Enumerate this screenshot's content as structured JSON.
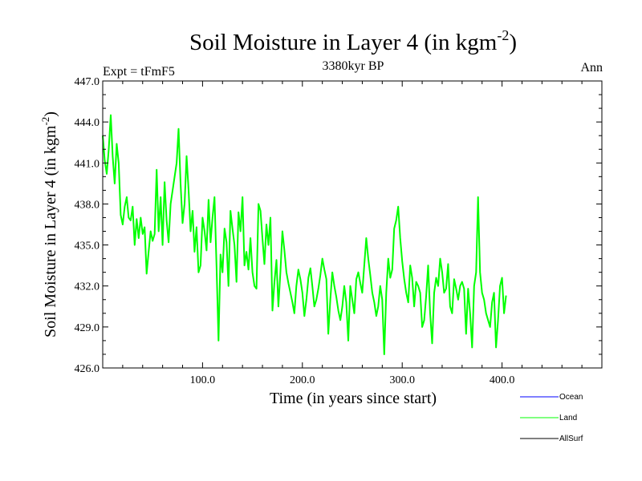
{
  "chart_data": {
    "type": "line",
    "title": "Soil Moisture in Layer 4 (in kgm",
    "title_exponent": "-2",
    "title_close": ")",
    "subtitle_left": "Expt = tFmF5",
    "subtitle_center": "3380kyr BP",
    "subtitle_right": "Ann",
    "xlabel": "Time (in years since start)",
    "ylabel": "Soil Moisture in Layer 4 (in kgm",
    "ylabel_exponent": "-2",
    "ylabel_close": ")",
    "xlim": [
      0,
      500
    ],
    "ylim": [
      426.0,
      447.0
    ],
    "x_ticks": [
      100,
      200,
      300,
      400
    ],
    "x_tick_labels": [
      "100.0",
      "200.0",
      "300.0",
      "400.0"
    ],
    "y_ticks": [
      426,
      429,
      432,
      435,
      438,
      441,
      444,
      447
    ],
    "y_tick_labels": [
      "426.0",
      "429.0",
      "432.0",
      "435.0",
      "438.0",
      "441.0",
      "444.0",
      "447.0"
    ],
    "legend": [
      {
        "name": "Ocean",
        "color": "#0000ff"
      },
      {
        "name": "Land",
        "color": "#00ff00"
      },
      {
        "name": "AllSurf",
        "color": "#000000"
      }
    ],
    "series": [
      {
        "name": "Land",
        "color": "#00ff00",
        "x_start": 0,
        "x_step": 2,
        "values": [
          443.0,
          441.2,
          440.2,
          442.0,
          444.5,
          441.5,
          439.5,
          442.4,
          441.0,
          437.2,
          436.5,
          437.8,
          438.5,
          437.0,
          436.8,
          437.8,
          435.0,
          436.9,
          435.5,
          437.0,
          435.8,
          436.3,
          432.9,
          434.5,
          436.0,
          435.3,
          435.8,
          440.5,
          436.0,
          438.5,
          435.0,
          439.6,
          436.8,
          435.2,
          438.0,
          439.0,
          440.0,
          441.0,
          443.5,
          439.5,
          436.6,
          438.0,
          441.5,
          439.0,
          436.0,
          437.5,
          434.5,
          436.3,
          433.0,
          433.5,
          437.0,
          436.0,
          434.6,
          438.3,
          435.2,
          437.0,
          438.5,
          433.5,
          428.0,
          434.3,
          433.0,
          436.2,
          435.2,
          432.0,
          437.5,
          436.2,
          435.0,
          432.3,
          437.4,
          436.0,
          438.5,
          433.5,
          434.5,
          433.2,
          435.5,
          433.0,
          432.0,
          431.8,
          438.0,
          437.5,
          435.5,
          433.6,
          436.5,
          435.0,
          437.0,
          430.2,
          432.3,
          433.9,
          430.5,
          433.0,
          436.0,
          434.6,
          433.0,
          432.2,
          431.5,
          430.8,
          430.0,
          432.0,
          433.2,
          432.5,
          431.5,
          429.8,
          431.0,
          432.6,
          433.3,
          432.0,
          430.5,
          431.0,
          431.8,
          432.8,
          434.0,
          433.2,
          432.5,
          428.5,
          431.0,
          433.0,
          432.0,
          431.2,
          430.2,
          429.5,
          430.5,
          432.0,
          430.8,
          428.0,
          432.0,
          431.0,
          430.0,
          432.5,
          433.0,
          432.2,
          431.5,
          433.5,
          435.5,
          434.0,
          432.8,
          431.5,
          430.8,
          429.8,
          430.5,
          432.0,
          431.0,
          427.0,
          431.5,
          434.0,
          432.6,
          433.2,
          436.2,
          436.8,
          437.8,
          435.5,
          433.8,
          432.5,
          431.5,
          430.8,
          433.5,
          432.6,
          430.5,
          432.3,
          432.0,
          431.5,
          429.0,
          429.5,
          431.3,
          433.5,
          430.0,
          427.8,
          431.5,
          432.6,
          432.0,
          434.0,
          433.0,
          431.5,
          431.8,
          433.6,
          430.5,
          430.0,
          432.5,
          431.8,
          431.0,
          432.0,
          432.3,
          431.8,
          428.5,
          431.8,
          430.0,
          427.5,
          432.0,
          433.0,
          438.5,
          433.0,
          431.5,
          431.0,
          430.0,
          429.5,
          429.0,
          430.8,
          431.5,
          427.5,
          429.5,
          432.0,
          432.6,
          430.0,
          431.3
        ]
      }
    ]
  }
}
